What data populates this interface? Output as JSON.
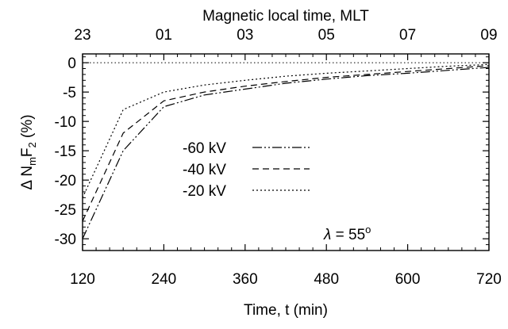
{
  "chart_data": {
    "type": "line",
    "title": "",
    "xlabel": "Time, t  (min)",
    "x2label": "Magnetic local time, MLT",
    "ylabel": "Δ NmF2  (%)",
    "ylabel_parts": {
      "prefix": "Δ N",
      "sub1": "m",
      "mid": "F",
      "sub2": "2",
      "suffix": "  (%)"
    },
    "xlim": [
      120,
      720
    ],
    "ylim": [
      -32,
      1.5
    ],
    "x_ticks": [
      120,
      240,
      360,
      480,
      600,
      720
    ],
    "x_tick_labels": [
      "120",
      "240",
      "360",
      "480",
      "600",
      "720"
    ],
    "x2_tick_positions": [
      120,
      240,
      360,
      480,
      600,
      720
    ],
    "x2_tick_labels": [
      "23",
      "01",
      "03",
      "05",
      "07",
      "09"
    ],
    "y_ticks": [
      0,
      -5,
      -10,
      -15,
      -20,
      -25,
      -30
    ],
    "y_tick_labels": [
      "0",
      "-5",
      "-10",
      "-15",
      "-20",
      "-25",
      "-30"
    ],
    "grid": false,
    "reference_line": {
      "y": 0,
      "style": "dotted"
    },
    "annotation": {
      "symbol": "λ",
      "text": " = 55",
      "superscript": "o"
    },
    "legend_placement": "center-left",
    "series": [
      {
        "name": "-60 kV",
        "dash": "12,3,2,3,2,3",
        "x": [
          120,
          180,
          240,
          300,
          360,
          420,
          480,
          540,
          600,
          660,
          720
        ],
        "y": [
          -30,
          -15,
          -7.5,
          -5.5,
          -4.5,
          -3.5,
          -2.8,
          -2.2,
          -1.8,
          -1.3,
          -0.8
        ]
      },
      {
        "name": "-40 kV",
        "dash": "8,5",
        "x": [
          120,
          180,
          240,
          300,
          360,
          420,
          480,
          540,
          600,
          660,
          720
        ],
        "y": [
          -27,
          -12,
          -6.5,
          -5,
          -4,
          -3.2,
          -2.5,
          -2,
          -1.5,
          -1,
          -0.5
        ]
      },
      {
        "name": "-20 kV",
        "dash": "2,3",
        "x": [
          120,
          180,
          240,
          300,
          360,
          420,
          480,
          540,
          600,
          660,
          720
        ],
        "y": [
          -23,
          -8,
          -5,
          -3.8,
          -3,
          -2.3,
          -1.8,
          -1.4,
          -1,
          -0.6,
          -0.3
        ]
      }
    ]
  }
}
